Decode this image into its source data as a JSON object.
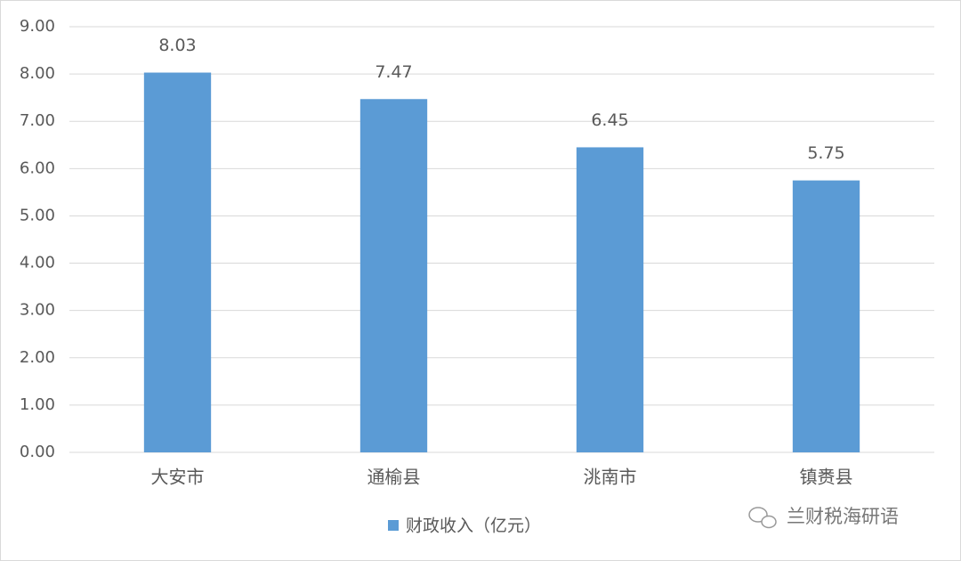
{
  "chart_data": {
    "type": "bar",
    "categories": [
      "大安市",
      "通榆县",
      "洮南市",
      "镇赉县"
    ],
    "series": [
      {
        "name": "财政收入（亿元）",
        "color": "#5b9bd5",
        "values": [
          8.03,
          7.47,
          6.45,
          5.75
        ]
      }
    ],
    "ylim": [
      0,
      9
    ],
    "yticks": [
      {
        "value": 0,
        "label": "0.00"
      },
      {
        "value": 1,
        "label": "1.00"
      },
      {
        "value": 2,
        "label": "2.00"
      },
      {
        "value": 3,
        "label": "3.00"
      },
      {
        "value": 4,
        "label": "4.00"
      },
      {
        "value": 5,
        "label": "5.00"
      },
      {
        "value": 6,
        "label": "6.00"
      },
      {
        "value": 7,
        "label": "7.00"
      },
      {
        "value": 8,
        "label": "8.00"
      },
      {
        "value": 9,
        "label": "9.00"
      }
    ],
    "grid": true,
    "legend": "bottom",
    "data_labels": true
  },
  "watermark": "兰财税海研语"
}
